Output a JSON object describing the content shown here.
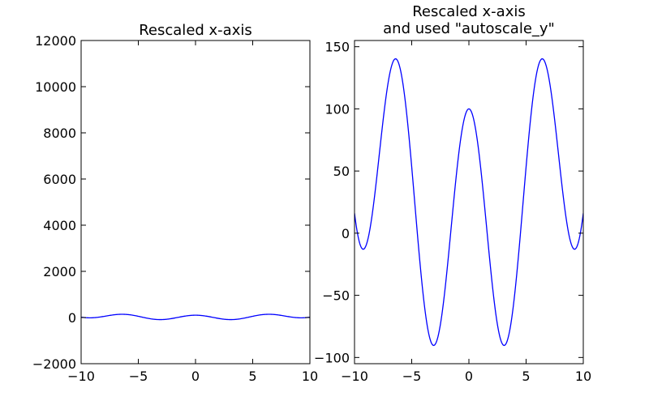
{
  "chart_data": [
    {
      "type": "line",
      "title_lines": [
        "Rescaled x-axis"
      ],
      "xlabel": "",
      "ylabel": "",
      "xlim": [
        -10,
        10
      ],
      "ylim": [
        -2000,
        12000
      ],
      "x_ticks": [
        -10,
        -5,
        0,
        5,
        10
      ],
      "x_tick_labels": [
        "−10",
        "−5",
        "0",
        "5",
        "10"
      ],
      "y_ticks": [
        -2000,
        0,
        2000,
        4000,
        6000,
        8000,
        10000,
        12000
      ],
      "y_tick_labels": [
        "−2000",
        "0",
        "2000",
        "4000",
        "6000",
        "8000",
        "10000",
        "12000"
      ],
      "grid": false,
      "line_color": "#0000ff",
      "series": [
        {
          "function": "x^2 + 100*cos(x)",
          "x_range": [
            -10,
            10
          ],
          "samples": 400
        }
      ]
    },
    {
      "type": "line",
      "title_lines": [
        "Rescaled x-axis",
        "and used \"autoscale_y\""
      ],
      "xlabel": "",
      "ylabel": "",
      "xlim": [
        -10,
        10
      ],
      "ylim": [
        -105,
        155
      ],
      "x_ticks": [
        -10,
        -5,
        0,
        5,
        10
      ],
      "x_tick_labels": [
        "−10",
        "−5",
        "0",
        "5",
        "10"
      ],
      "y_ticks": [
        -100,
        -50,
        0,
        50,
        100,
        150
      ],
      "y_tick_labels": [
        "−100",
        "−50",
        "0",
        "50",
        "100",
        "150"
      ],
      "grid": false,
      "line_color": "#0000ff",
      "series": [
        {
          "function": "x^2 + 100*cos(x)",
          "x_range": [
            -10,
            10
          ],
          "samples": 400
        }
      ]
    }
  ]
}
